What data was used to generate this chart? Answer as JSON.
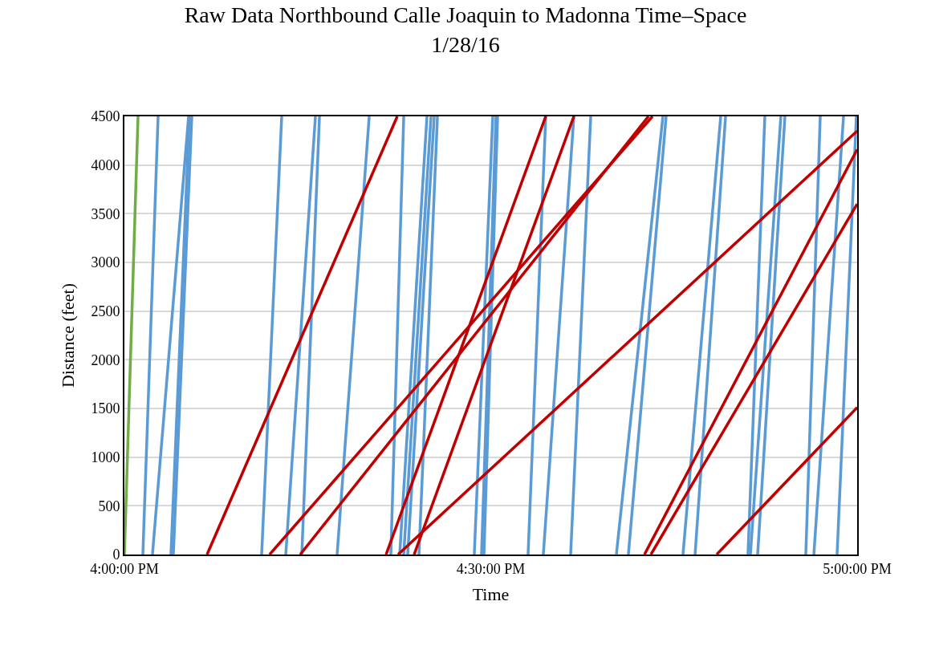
{
  "chart_data": {
    "type": "line",
    "title": "Raw Data Northbound Calle Joaquin to Madonna Time–Space\n1/28/16",
    "xlabel": "Time",
    "ylabel": "Distance (feet)",
    "xlim": [
      16,
      17
    ],
    "xticks": [
      {
        "value": 16,
        "label": "4:00:00 PM"
      },
      {
        "value": 16.5,
        "label": "4:30:00 PM"
      },
      {
        "value": 17,
        "label": "5:00:00 PM"
      }
    ],
    "ylim": [
      0,
      4500
    ],
    "yticks": [
      0,
      500,
      1000,
      1500,
      2000,
      2500,
      3000,
      3500,
      4000,
      4500
    ],
    "grid": "y",
    "marker": "none",
    "line_style": "solid",
    "series": [
      {
        "color": "#70ad47",
        "x": [
          16,
          16.0186
        ],
        "values": [
          0,
          4500
        ]
      },
      {
        "color": "#5b9bd5",
        "x": [
          16.0252,
          16.046
        ],
        "values": [
          0,
          4500
        ]
      },
      {
        "color": "#5b9bd5",
        "x": [
          16.0383,
          16.0876
        ],
        "values": [
          0,
          4500
        ]
      },
      {
        "color": "#5b9bd5",
        "x": [
          16.0635,
          16.0887
        ],
        "values": [
          0,
          4500
        ]
      },
      {
        "color": "#5b9bd5",
        "x": [
          16.0668,
          16.092
        ],
        "values": [
          0,
          4500
        ]
      },
      {
        "color": "#5b9bd5",
        "x": [
          16.1873,
          16.2147
        ],
        "values": [
          0,
          4500
        ]
      },
      {
        "color": "#5b9bd5",
        "x": [
          16.2202,
          16.2607
        ],
        "values": [
          0,
          4500
        ]
      },
      {
        "color": "#5b9bd5",
        "x": [
          16.2421,
          16.2662
        ],
        "values": [
          0,
          4500
        ]
      },
      {
        "color": "#5b9bd5",
        "x": [
          16.2903,
          16.3341
        ],
        "values": [
          0,
          4500
        ]
      },
      {
        "color": "#5b9bd5",
        "x": [
          16.3636,
          16.3812
        ],
        "values": [
          0,
          4500
        ]
      },
      {
        "color": "#5b9bd5",
        "x": [
          16.3757,
          16.4129
        ],
        "values": [
          0,
          4500
        ]
      },
      {
        "color": "#5b9bd5",
        "x": [
          16.3812,
          16.4184
        ],
        "values": [
          0,
          4500
        ]
      },
      {
        "color": "#5b9bd5",
        "x": [
          16.3866,
          16.4228
        ],
        "values": [
          0,
          4500
        ]
      },
      {
        "color": "#5b9bd5",
        "x": [
          16.402,
          16.4272
        ],
        "values": [
          0,
          4500
        ]
      },
      {
        "color": "#5b9bd5",
        "x": [
          16.4775,
          16.5027
        ],
        "values": [
          0,
          4500
        ]
      },
      {
        "color": "#5b9bd5",
        "x": [
          16.4874,
          16.5071
        ],
        "values": [
          0,
          4500
        ]
      },
      {
        "color": "#5b9bd5",
        "x": [
          16.4907,
          16.5093
        ],
        "values": [
          0,
          4500
        ]
      },
      {
        "color": "#5b9bd5",
        "x": [
          16.5509,
          16.575
        ],
        "values": [
          0,
          4500
        ]
      },
      {
        "color": "#5b9bd5",
        "x": [
          16.5717,
          16.6134
        ],
        "values": [
          0,
          4500
        ]
      },
      {
        "color": "#5b9bd5",
        "x": [
          16.609,
          16.6364
        ],
        "values": [
          0,
          4500
        ]
      },
      {
        "color": "#5b9bd5",
        "x": [
          16.6714,
          16.7349
        ],
        "values": [
          0,
          4500
        ]
      },
      {
        "color": "#5b9bd5",
        "x": [
          16.6878,
          16.7393
        ],
        "values": [
          0,
          4500
        ]
      },
      {
        "color": "#5b9bd5",
        "x": [
          16.7623,
          16.8138
        ],
        "values": [
          0,
          4500
        ]
      },
      {
        "color": "#5b9bd5",
        "x": [
          16.7788,
          16.8204
        ],
        "values": [
          0,
          4500
        ]
      },
      {
        "color": "#5b9bd5",
        "x": [
          16.851,
          16.874
        ],
        "values": [
          0,
          4500
        ]
      },
      {
        "color": "#5b9bd5",
        "x": [
          16.8543,
          16.8959
        ],
        "values": [
          0,
          4500
        ]
      },
      {
        "color": "#5b9bd5",
        "x": [
          16.8642,
          16.9014
        ],
        "values": [
          0,
          4500
        ]
      },
      {
        "color": "#5b9bd5",
        "x": [
          16.9299,
          16.9496
        ],
        "values": [
          0,
          4500
        ]
      },
      {
        "color": "#5b9bd5",
        "x": [
          16.9409,
          16.9814
        ],
        "values": [
          0,
          4500
        ]
      },
      {
        "color": "#5b9bd5",
        "x": [
          16.9726,
          16.9989
        ],
        "values": [
          0,
          4500
        ]
      },
      {
        "color": "#c00000",
        "x": [
          16.1128,
          16.3724
        ],
        "values": [
          0,
          4500
        ]
      },
      {
        "color": "#c00000",
        "x": [
          16.1982,
          16.7207
        ],
        "values": [
          0,
          4500
        ]
      },
      {
        "color": "#c00000",
        "x": [
          16.2399,
          16.7152
        ],
        "values": [
          0,
          4500
        ]
      },
      {
        "color": "#c00000",
        "x": [
          16.3571,
          16.575
        ],
        "values": [
          0,
          4500
        ]
      },
      {
        "color": "#c00000",
        "x": [
          16.3954,
          16.6134
        ],
        "values": [
          0,
          4500
        ]
      },
      {
        "color": "#c00000",
        "x": [
          16.3735,
          17
        ],
        "values": [
          0,
          4350
        ]
      },
      {
        "color": "#c00000",
        "x": [
          16.7097,
          17
        ],
        "values": [
          0,
          4160
        ]
      },
      {
        "color": "#c00000",
        "x": [
          16.7185,
          17
        ],
        "values": [
          0,
          3600
        ]
      },
      {
        "color": "#c00000",
        "x": [
          16.8083,
          17
        ],
        "values": [
          0,
          1510
        ]
      }
    ]
  }
}
